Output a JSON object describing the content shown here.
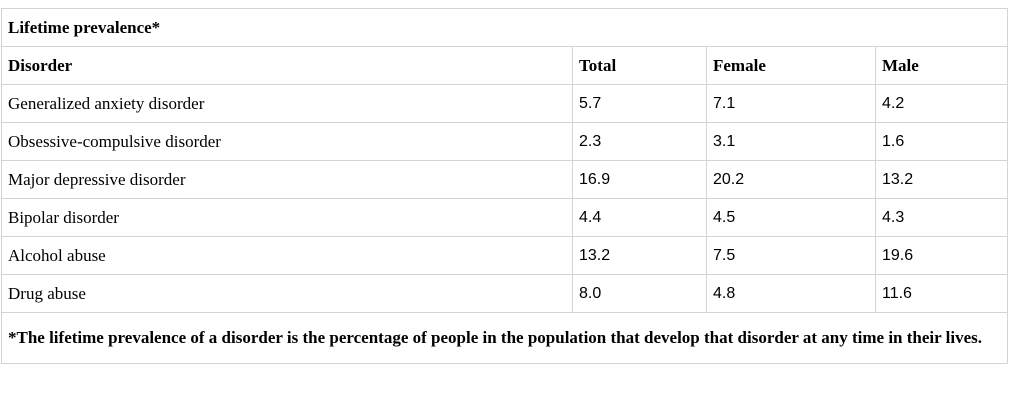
{
  "table": {
    "title": "Lifetime prevalence*",
    "headers": [
      "Disorder",
      "Total",
      "Female",
      "Male"
    ],
    "rows": [
      {
        "disorder": "Generalized anxiety disorder",
        "total": "5.7",
        "female": "7.1",
        "male": "4.2"
      },
      {
        "disorder": "Obsessive-compulsive disorder",
        "total": "2.3",
        "female": "3.1",
        "male": "1.6"
      },
      {
        "disorder": "Major depressive disorder",
        "total": "16.9",
        "female": "20.2",
        "male": "13.2"
      },
      {
        "disorder": "Bipolar disorder",
        "total": "4.4",
        "female": "4.5",
        "male": "4.3"
      },
      {
        "disorder": "Alcohol abuse",
        "total": "13.2",
        "female": "7.5",
        "male": "19.6"
      },
      {
        "disorder": "Drug abuse",
        "total": "8.0",
        "female": "4.8",
        "male": "11.6"
      }
    ],
    "footnote": "*The lifetime prevalence of a disorder is the percentage of people in the population that develop that disorder at any time in their lives."
  },
  "colors": {
    "border": "#d4d4d4",
    "text": "#000000",
    "background": "#ffffff"
  }
}
